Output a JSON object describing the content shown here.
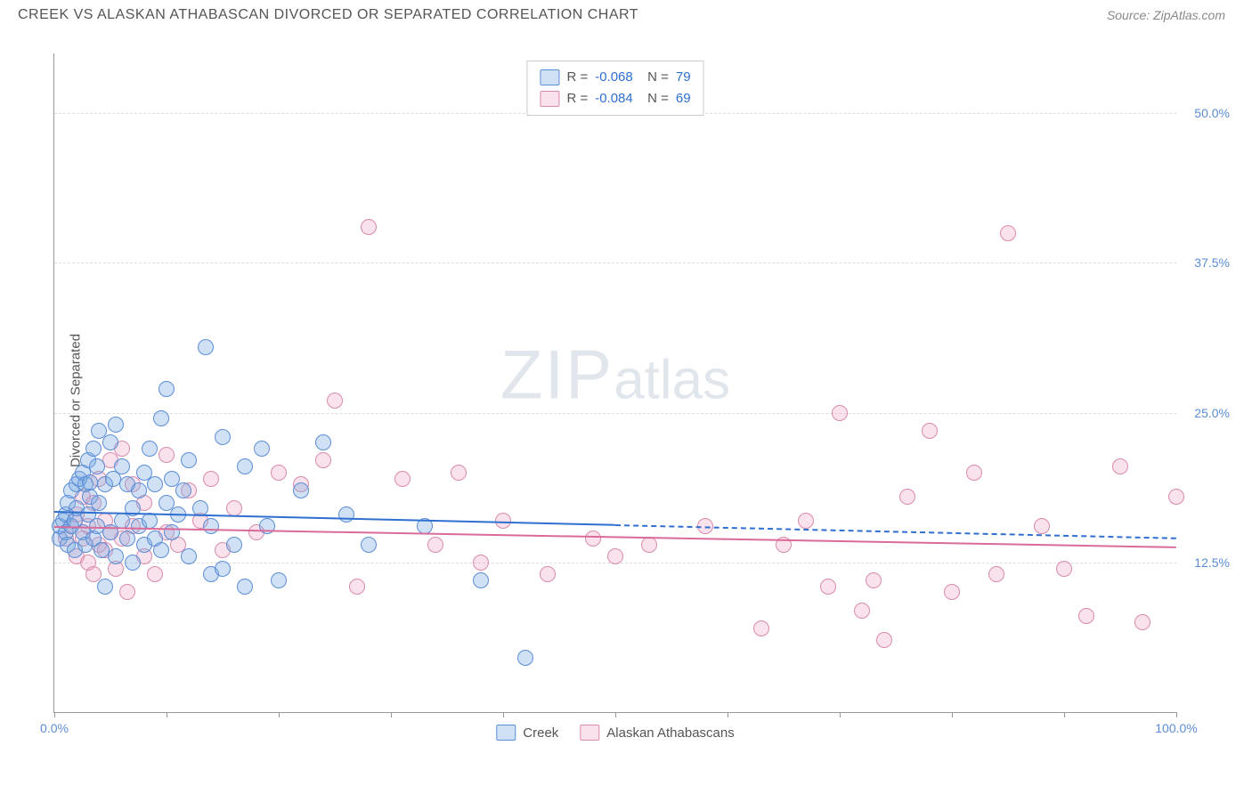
{
  "header": {
    "title": "CREEK VS ALASKAN ATHABASCAN DIVORCED OR SEPARATED CORRELATION CHART",
    "source": "Source: ZipAtlas.com"
  },
  "watermark": {
    "big": "ZIP",
    "small": "atlas"
  },
  "chart": {
    "type": "scatter",
    "ylabel": "Divorced or Separated",
    "xlim": [
      0,
      100
    ],
    "ylim": [
      0,
      55
    ],
    "xtick_positions": [
      0,
      10,
      20,
      30,
      40,
      50,
      60,
      70,
      80,
      90,
      100
    ],
    "xtick_labels": {
      "0": "0.0%",
      "100": "100.0%"
    },
    "yticks": [
      {
        "v": 12.5,
        "label": "12.5%"
      },
      {
        "v": 25.0,
        "label": "25.0%"
      },
      {
        "v": 37.5,
        "label": "37.5%"
      },
      {
        "v": 50.0,
        "label": "50.0%"
      }
    ],
    "grid_color": "#dddddd",
    "background_color": "#ffffff",
    "marker_radius": 9,
    "marker_border_width": 1.5,
    "series": {
      "creek": {
        "label": "Creek",
        "fill": "rgba(120,170,225,0.35)",
        "stroke": "#5b8dd6",
        "R": "-0.068",
        "N": "79",
        "trend": {
          "y_at_x0": 16.8,
          "y_at_x100": 14.6,
          "solid_until_x": 50,
          "color": "#2f6fd0",
          "width": 2
        },
        "points": [
          [
            0.5,
            14.5
          ],
          [
            0.5,
            15.5
          ],
          [
            0.8,
            16.0
          ],
          [
            1.0,
            15.0
          ],
          [
            1.0,
            16.5
          ],
          [
            1.2,
            14.0
          ],
          [
            1.2,
            17.5
          ],
          [
            1.5,
            15.5
          ],
          [
            1.5,
            18.5
          ],
          [
            1.8,
            13.5
          ],
          [
            1.8,
            16.0
          ],
          [
            2.0,
            17.0
          ],
          [
            2.0,
            19.0
          ],
          [
            2.2,
            19.5
          ],
          [
            2.5,
            15.0
          ],
          [
            2.5,
            20.0
          ],
          [
            2.8,
            14.0
          ],
          [
            2.8,
            19.0
          ],
          [
            3.0,
            16.5
          ],
          [
            3.0,
            21.0
          ],
          [
            3.2,
            18.0
          ],
          [
            3.2,
            19.2
          ],
          [
            3.5,
            14.5
          ],
          [
            3.5,
            22.0
          ],
          [
            3.8,
            15.5
          ],
          [
            3.8,
            20.5
          ],
          [
            4.0,
            17.5
          ],
          [
            4.0,
            23.5
          ],
          [
            4.2,
            13.5
          ],
          [
            4.5,
            10.5
          ],
          [
            4.5,
            19.0
          ],
          [
            5.0,
            15.0
          ],
          [
            5.0,
            22.5
          ],
          [
            5.2,
            19.5
          ],
          [
            5.5,
            24.0
          ],
          [
            5.5,
            13.0
          ],
          [
            6.0,
            16.0
          ],
          [
            6.0,
            20.5
          ],
          [
            6.5,
            14.5
          ],
          [
            6.5,
            19.0
          ],
          [
            7.0,
            17.0
          ],
          [
            7.0,
            12.5
          ],
          [
            7.5,
            18.5
          ],
          [
            7.5,
            15.5
          ],
          [
            8.0,
            14.0
          ],
          [
            8.0,
            20.0
          ],
          [
            8.5,
            22.0
          ],
          [
            8.5,
            16.0
          ],
          [
            9.0,
            14.5
          ],
          [
            9.0,
            19.0
          ],
          [
            9.5,
            24.5
          ],
          [
            9.5,
            13.5
          ],
          [
            10.0,
            27.0
          ],
          [
            10.0,
            17.5
          ],
          [
            10.5,
            19.5
          ],
          [
            10.5,
            15.0
          ],
          [
            11.0,
            16.5
          ],
          [
            11.5,
            18.5
          ],
          [
            12.0,
            13.0
          ],
          [
            12.0,
            21.0
          ],
          [
            13.0,
            17.0
          ],
          [
            13.5,
            30.5
          ],
          [
            14.0,
            15.5
          ],
          [
            14.0,
            11.5
          ],
          [
            15.0,
            23.0
          ],
          [
            15.0,
            12.0
          ],
          [
            16.0,
            14.0
          ],
          [
            17.0,
            20.5
          ],
          [
            17.0,
            10.5
          ],
          [
            18.5,
            22.0
          ],
          [
            19.0,
            15.5
          ],
          [
            20.0,
            11.0
          ],
          [
            22.0,
            18.5
          ],
          [
            24.0,
            22.5
          ],
          [
            26.0,
            16.5
          ],
          [
            28.0,
            14.0
          ],
          [
            33.0,
            15.5
          ],
          [
            38.0,
            11.0
          ],
          [
            42.0,
            4.5
          ]
        ]
      },
      "athabascan": {
        "label": "Alaskan Athabascans",
        "fill": "rgba(235,160,190,0.30)",
        "stroke": "#d98aac",
        "R": "-0.084",
        "N": "69",
        "trend": {
          "y_at_x0": 15.5,
          "y_at_x100": 13.8,
          "solid_until_x": 100,
          "color": "#d96a9a",
          "width": 2
        },
        "points": [
          [
            1.0,
            14.5
          ],
          [
            1.5,
            15.5
          ],
          [
            2.0,
            13.0
          ],
          [
            2.0,
            16.5
          ],
          [
            2.5,
            14.5
          ],
          [
            2.5,
            18.0
          ],
          [
            3.0,
            12.5
          ],
          [
            3.0,
            15.5
          ],
          [
            3.5,
            17.5
          ],
          [
            3.5,
            11.5
          ],
          [
            4.0,
            14.0
          ],
          [
            4.0,
            19.5
          ],
          [
            4.5,
            13.5
          ],
          [
            4.5,
            16.0
          ],
          [
            5.0,
            15.0
          ],
          [
            5.0,
            21.0
          ],
          [
            5.5,
            12.0
          ],
          [
            6.0,
            14.5
          ],
          [
            6.0,
            22.0
          ],
          [
            6.5,
            10.0
          ],
          [
            7.0,
            15.5
          ],
          [
            7.0,
            19.0
          ],
          [
            8.0,
            13.0
          ],
          [
            8.0,
            17.5
          ],
          [
            9.0,
            11.5
          ],
          [
            10.0,
            15.0
          ],
          [
            10.0,
            21.5
          ],
          [
            11.0,
            14.0
          ],
          [
            12.0,
            18.5
          ],
          [
            13.0,
            16.0
          ],
          [
            14.0,
            19.5
          ],
          [
            15.0,
            13.5
          ],
          [
            16.0,
            17.0
          ],
          [
            18.0,
            15.0
          ],
          [
            20.0,
            20.0
          ],
          [
            22.0,
            19.0
          ],
          [
            24.0,
            21.0
          ],
          [
            25.0,
            26.0
          ],
          [
            27.0,
            10.5
          ],
          [
            28.0,
            40.5
          ],
          [
            31.0,
            19.5
          ],
          [
            34.0,
            14.0
          ],
          [
            36.0,
            20.0
          ],
          [
            38.0,
            12.5
          ],
          [
            40.0,
            16.0
          ],
          [
            44.0,
            11.5
          ],
          [
            48.0,
            14.5
          ],
          [
            50.0,
            13.0
          ],
          [
            53.0,
            14.0
          ],
          [
            58.0,
            15.5
          ],
          [
            63.0,
            7.0
          ],
          [
            65.0,
            14.0
          ],
          [
            67.0,
            16.0
          ],
          [
            69.0,
            10.5
          ],
          [
            70.0,
            25.0
          ],
          [
            72.0,
            8.5
          ],
          [
            73.0,
            11.0
          ],
          [
            74.0,
            6.0
          ],
          [
            76.0,
            18.0
          ],
          [
            78.0,
            23.5
          ],
          [
            80.0,
            10.0
          ],
          [
            82.0,
            20.0
          ],
          [
            84.0,
            11.5
          ],
          [
            85.0,
            40.0
          ],
          [
            88.0,
            15.5
          ],
          [
            90.0,
            12.0
          ],
          [
            92.0,
            8.0
          ],
          [
            95.0,
            20.5
          ],
          [
            97.0,
            7.5
          ],
          [
            100.0,
            18.0
          ]
        ]
      }
    }
  }
}
